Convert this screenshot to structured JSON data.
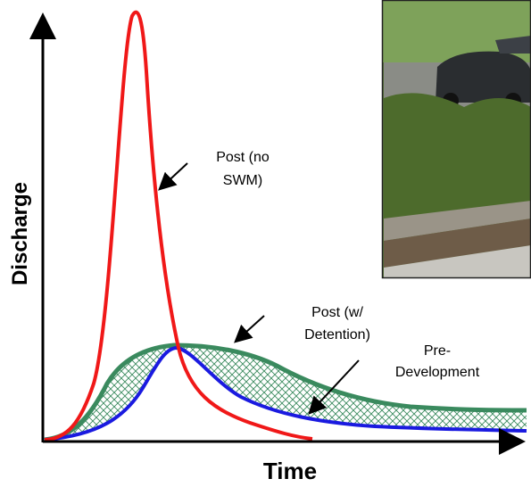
{
  "axes": {
    "y_label": "Discharge",
    "x_label": "Time"
  },
  "annotations": [
    {
      "lines": [
        "Post (no",
        "SWM)"
      ]
    },
    {
      "lines": [
        "Post (w/",
        "Detention)"
      ]
    },
    {
      "lines": [
        "Pre-",
        "Development"
      ]
    }
  ]
}
